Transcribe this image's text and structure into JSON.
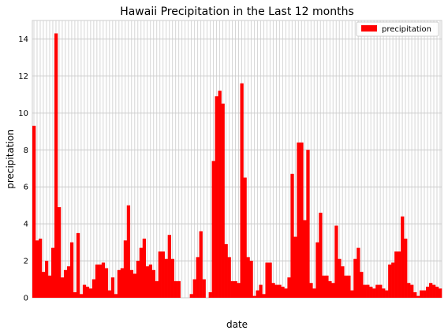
{
  "chart_data": {
    "type": "bar",
    "title": "Hawaii Precipitation in the Last 12 months",
    "xlabel": "date",
    "ylabel": "precipitation",
    "ylim": [
      0,
      15
    ],
    "yticks": [
      0,
      2,
      4,
      6,
      8,
      10,
      12,
      14
    ],
    "grid": true,
    "legend_position": "top-right",
    "bar_color": "#ff0000",
    "series": [
      {
        "name": "precipitation",
        "values": [
          9.3,
          3.1,
          3.2,
          1.4,
          2.0,
          1.2,
          2.7,
          14.3,
          4.9,
          1.1,
          1.5,
          1.7,
          3.0,
          0.3,
          3.5,
          0.2,
          0.7,
          0.6,
          0.5,
          1.0,
          1.8,
          1.8,
          1.9,
          1.6,
          0.4,
          1.1,
          0.2,
          1.5,
          1.6,
          3.1,
          5.0,
          1.5,
          1.3,
          2.0,
          2.7,
          3.2,
          1.7,
          1.8,
          1.5,
          0.9,
          2.5,
          2.5,
          2.1,
          3.4,
          2.1,
          0.9,
          0.9,
          0.0,
          0.0,
          0.0,
          0.2,
          1.0,
          2.2,
          3.6,
          1.0,
          0.0,
          0.3,
          7.4,
          10.9,
          11.2,
          10.5,
          2.9,
          2.2,
          0.9,
          0.9,
          0.8,
          11.6,
          6.5,
          2.2,
          2.0,
          0.1,
          0.4,
          0.7,
          0.2,
          1.9,
          1.9,
          0.8,
          0.7,
          0.7,
          0.6,
          0.5,
          1.1,
          6.7,
          3.3,
          8.4,
          8.4,
          4.2,
          8.0,
          0.8,
          0.5,
          3.0,
          4.6,
          1.2,
          1.2,
          0.9,
          0.8,
          3.9,
          2.1,
          1.7,
          1.2,
          1.2,
          0.4,
          2.1,
          2.7,
          1.4,
          0.7,
          0.7,
          0.6,
          0.5,
          0.7,
          0.7,
          0.5,
          0.4,
          1.8,
          1.9,
          2.5,
          2.5,
          4.4,
          3.2,
          0.8,
          0.7,
          0.3,
          0.1,
          0.4,
          0.4,
          0.6,
          0.8,
          0.7,
          0.6,
          0.5
        ]
      }
    ]
  }
}
